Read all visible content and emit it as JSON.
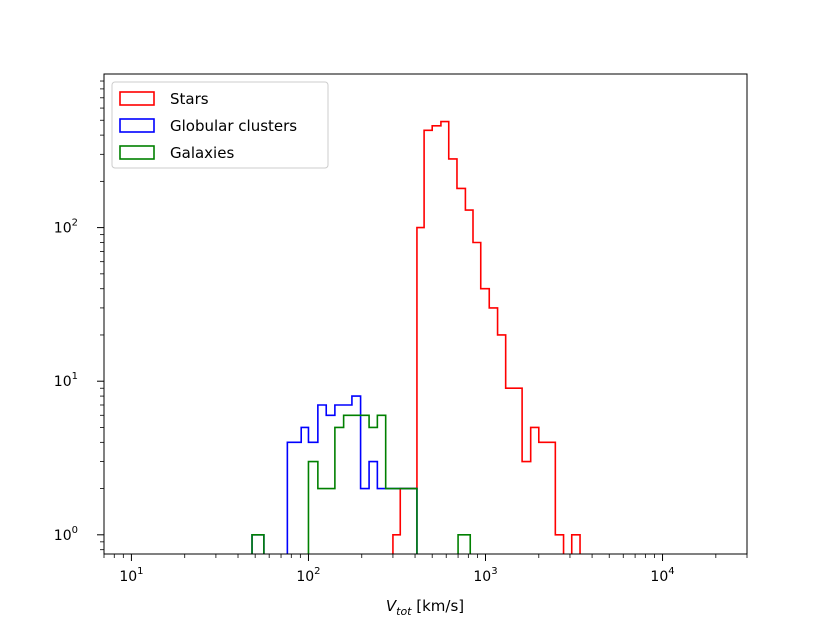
{
  "chart_data": {
    "type": "histogram",
    "xscale": "log",
    "yscale": "log",
    "xlim": [
      7,
      30000
    ],
    "ylim": [
      0.75,
      1000
    ],
    "grid": false,
    "legend_position": "upper-left",
    "xlabel_main": "V",
    "xlabel_sub": "tot",
    "xlabel_unit": "[km/s]",
    "xticks": [
      {
        "value": 10,
        "base": "10",
        "exp": "1"
      },
      {
        "value": 100,
        "base": "10",
        "exp": "2"
      },
      {
        "value": 1000,
        "base": "10",
        "exp": "3"
      },
      {
        "value": 10000,
        "base": "10",
        "exp": "4"
      }
    ],
    "yticks": [
      {
        "value": 1,
        "base": "10",
        "exp": "0"
      },
      {
        "value": 10,
        "base": "10",
        "exp": "1"
      },
      {
        "value": 100,
        "base": "10",
        "exp": "2"
      }
    ],
    "series": [
      {
        "name": "Stars",
        "color": "#ff0000",
        "bins": [
          [
            300,
            330,
            1
          ],
          [
            330,
            410,
            2
          ],
          [
            410,
            450,
            100
          ],
          [
            450,
            500,
            430
          ],
          [
            500,
            560,
            460
          ],
          [
            560,
            620,
            490
          ],
          [
            620,
            690,
            280
          ],
          [
            690,
            770,
            180
          ],
          [
            770,
            850,
            130
          ],
          [
            850,
            940,
            80
          ],
          [
            940,
            1050,
            40
          ],
          [
            1050,
            1170,
            30
          ],
          [
            1170,
            1300,
            20
          ],
          [
            1300,
            1450,
            9
          ],
          [
            1450,
            1610,
            9
          ],
          [
            1610,
            1800,
            3
          ],
          [
            1800,
            2000,
            5
          ],
          [
            2000,
            2220,
            4
          ],
          [
            2220,
            2480,
            4
          ],
          [
            2480,
            2760,
            1
          ],
          [
            2760,
            3070,
            0
          ],
          [
            3070,
            3420,
            1
          ]
        ]
      },
      {
        "name": "Globular clusters",
        "color": "#0000ff",
        "bins": [
          [
            48,
            56,
            1
          ],
          [
            56,
            76,
            0
          ],
          [
            76,
            91,
            4
          ],
          [
            91,
            100,
            5
          ],
          [
            100,
            113,
            4
          ],
          [
            113,
            126,
            7
          ],
          [
            126,
            141,
            6
          ],
          [
            141,
            158,
            7
          ],
          [
            158,
            176,
            7
          ],
          [
            176,
            197,
            8
          ],
          [
            197,
            220,
            2
          ],
          [
            220,
            245,
            3
          ],
          [
            245,
            273,
            2
          ],
          [
            273,
            410,
            2
          ]
        ]
      },
      {
        "name": "Galaxies",
        "color": "#008000",
        "bins": [
          [
            48,
            56,
            1
          ],
          [
            56,
            100,
            0
          ],
          [
            100,
            113,
            3
          ],
          [
            113,
            141,
            2
          ],
          [
            141,
            158,
            5
          ],
          [
            158,
            176,
            6
          ],
          [
            176,
            197,
            6
          ],
          [
            197,
            220,
            6
          ],
          [
            220,
            245,
            5
          ],
          [
            245,
            273,
            6
          ],
          [
            273,
            360,
            2
          ],
          [
            360,
            410,
            2
          ],
          [
            700,
            820,
            1
          ]
        ]
      }
    ]
  }
}
